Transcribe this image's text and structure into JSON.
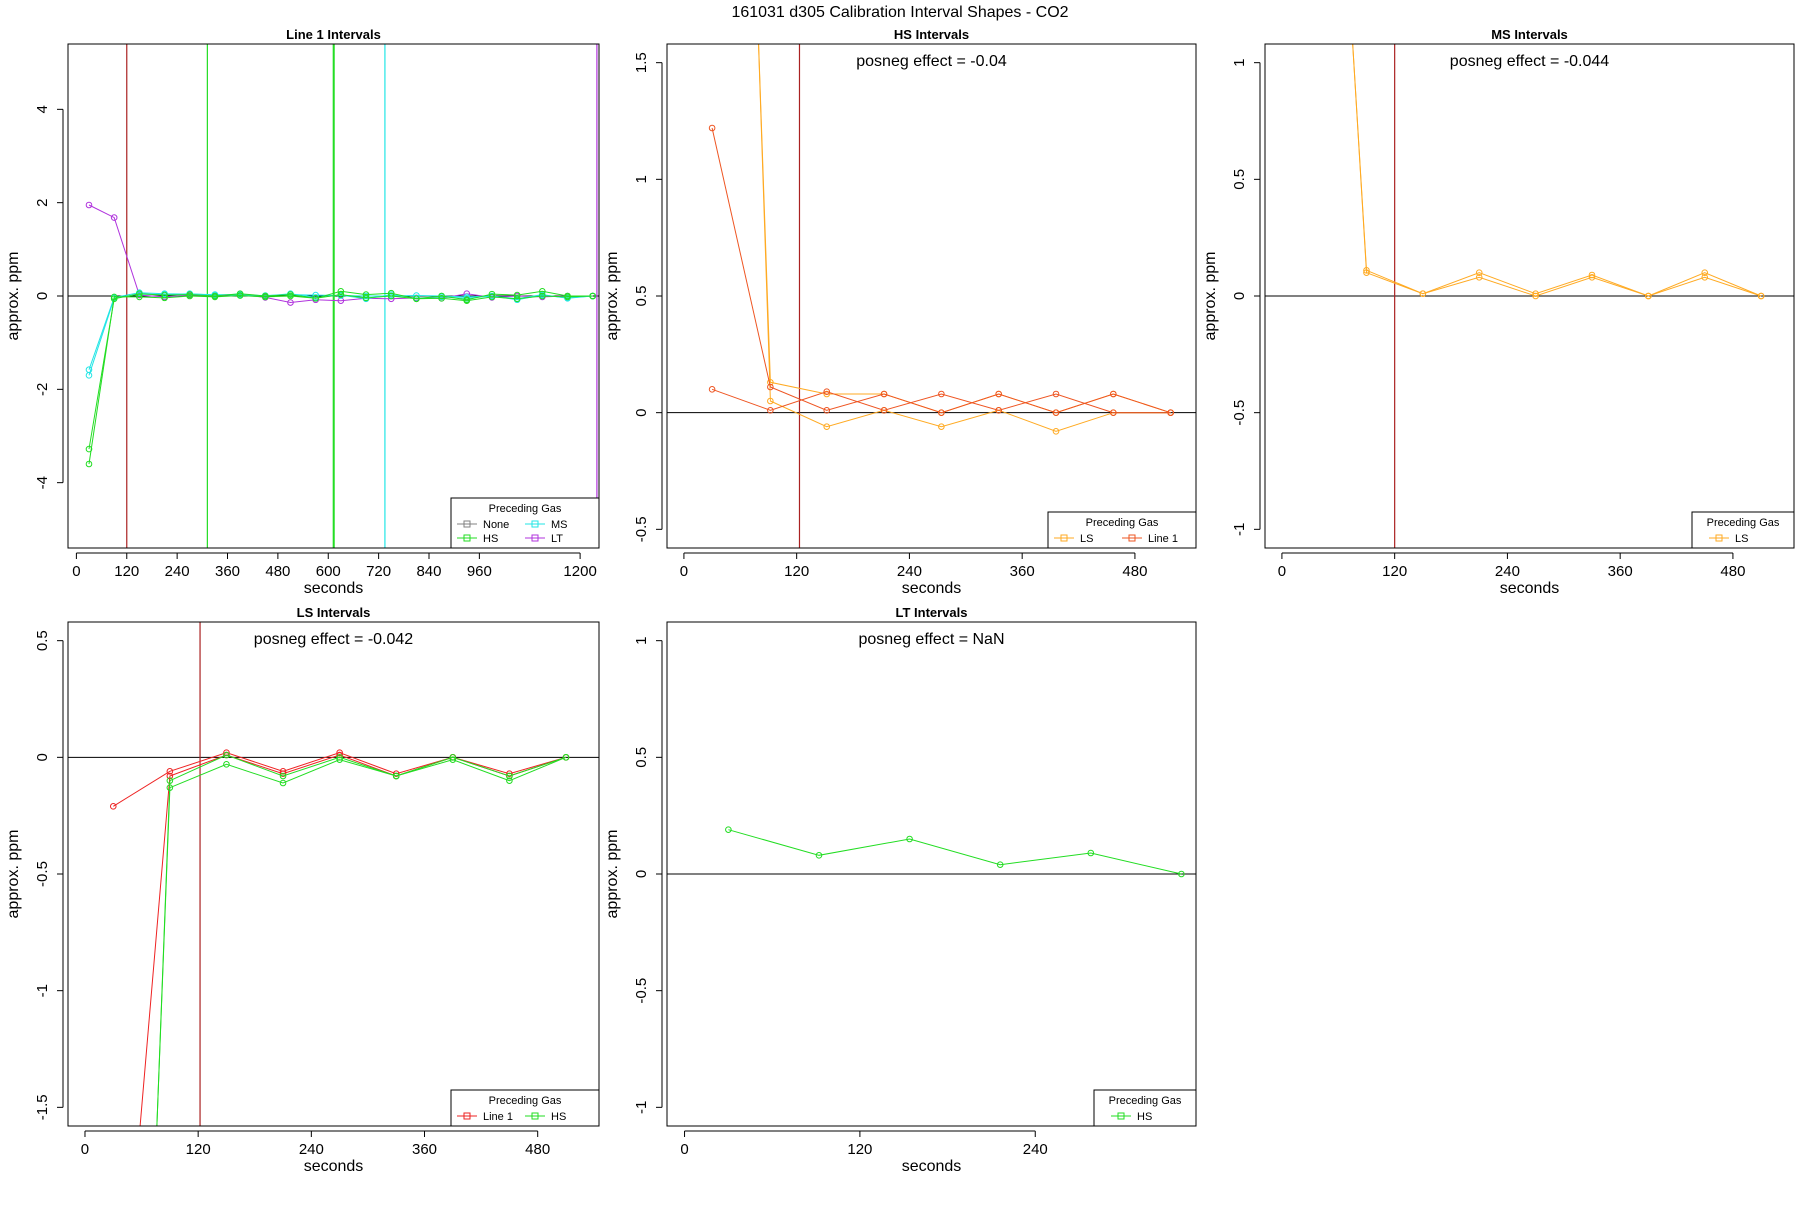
{
  "figure_title": "161031  d305   Calibration Interval Shapes - CO2",
  "colors": {
    "None": "#808080",
    "HS": "#22dd22",
    "MS": "#22e5e5",
    "LT": "#b033dd",
    "LS": "#ffaa22",
    "Line 1": "#ee2222",
    "Line 1 (in HS panel)": "#ee5522",
    "axis": "#000000",
    "marker_line": "#aa2222"
  },
  "chart_data": [
    {
      "type": "line",
      "title": "Line 1 Intervals",
      "xlabel": "seconds",
      "ylabel": "approx. ppm",
      "xlim": [
        -20,
        1245
      ],
      "ylim": [
        -5.4,
        5.4
      ],
      "xticks": [
        0,
        120,
        240,
        360,
        480,
        600,
        720,
        840,
        960,
        1200
      ],
      "yticks": [
        -4,
        -2,
        0,
        2,
        4
      ],
      "hline": 0,
      "vlines": [
        {
          "x": 120,
          "color": "#aa2222"
        },
        {
          "x": 312,
          "color": "#22dd22"
        },
        {
          "x": 612,
          "color": "#22dd22"
        },
        {
          "x": 614,
          "color": "#22dd22"
        },
        {
          "x": 735,
          "color": "#22e5e5"
        },
        {
          "x": 1240,
          "color": "#b033dd"
        }
      ],
      "legend": {
        "title": "Preceding Gas",
        "position": "bottom-right",
        "entries": [
          {
            "label": "None",
            "color": "#808080"
          },
          {
            "label": "MS",
            "color": "#22e5e5"
          },
          {
            "label": "HS",
            "color": "#22dd22"
          },
          {
            "label": "LT",
            "color": "#b033dd"
          }
        ]
      },
      "series": [
        {
          "name": "LT",
          "color": "#b033dd",
          "x": [
            30,
            90,
            150,
            210,
            270,
            330,
            390,
            450,
            510,
            570,
            630,
            690,
            750,
            810,
            870,
            930,
            990,
            1050,
            1110,
            1170,
            1230
          ],
          "y": [
            1.95,
            1.68,
            0.02,
            -0.02,
            0.02,
            0.0,
            0.03,
            -0.03,
            -0.14,
            -0.08,
            -0.1,
            -0.05,
            -0.06,
            -0.04,
            -0.05,
            0.05,
            -0.03,
            0.0,
            -0.02,
            0.0,
            0.0
          ]
        },
        {
          "name": "MS",
          "color": "#22e5e5",
          "x": [
            30,
            90,
            150,
            210,
            270,
            330,
            390,
            450,
            510,
            570,
            630,
            690,
            750,
            810,
            870,
            930,
            990,
            1050,
            1110,
            1170,
            1230
          ],
          "y": [
            -1.58,
            -0.03,
            0.07,
            0.05,
            0.04,
            0.03,
            0.02,
            0.01,
            0.03,
            0.02,
            0.01,
            0.0,
            0.0,
            0.01,
            0.0,
            -0.02,
            0.0,
            -0.08,
            0.02,
            -0.04,
            0.0
          ]
        },
        {
          "name": "MS",
          "color": "#22e5e5",
          "x": [
            30,
            90,
            150,
            210,
            270,
            330,
            390,
            450,
            510,
            570,
            630,
            690,
            750,
            810,
            870,
            930,
            990,
            1050,
            1110,
            1170,
            1230
          ],
          "y": [
            -1.7,
            -0.05,
            0.04,
            0.03,
            0.05,
            0.02,
            0.04,
            0.0,
            0.05,
            -0.03,
            0.02,
            -0.06,
            0.03,
            -0.05,
            -0.02,
            -0.05,
            0.0,
            -0.06,
            0.03,
            -0.05,
            0.0
          ]
        },
        {
          "name": "HS",
          "color": "#22dd22",
          "x": [
            30,
            90,
            150,
            210,
            270,
            330,
            390,
            450,
            510,
            570,
            630,
            690,
            750,
            810,
            870,
            930,
            990,
            1050,
            1110,
            1170,
            1230
          ],
          "y": [
            -3.28,
            -0.06,
            0.05,
            0.02,
            0.03,
            0.0,
            0.05,
            0.0,
            0.03,
            -0.05,
            0.1,
            0.03,
            0.06,
            -0.06,
            0.0,
            -0.08,
            0.04,
            0.02,
            0.1,
            0.0,
            0.0
          ]
        },
        {
          "name": "HS",
          "color": "#22dd22",
          "x": [
            30,
            90,
            150,
            210,
            270,
            330,
            390,
            450,
            510,
            570,
            630,
            690,
            750,
            810,
            870,
            930,
            990,
            1050,
            1110,
            1170,
            1230
          ],
          "y": [
            -3.6,
            -0.02,
            -0.02,
            -0.04,
            0.0,
            -0.02,
            0.01,
            -0.02,
            0.0,
            -0.05,
            0.03,
            -0.04,
            0.0,
            -0.06,
            -0.05,
            -0.1,
            -0.02,
            -0.06,
            0.0,
            -0.02,
            0.0
          ]
        }
      ]
    },
    {
      "type": "line",
      "title": "HS Intervals",
      "annotation": "posneg effect = -0.04",
      "xlabel": "seconds",
      "ylabel": "approx. ppm",
      "xlim": [
        -18,
        545
      ],
      "ylim": [
        -0.58,
        1.58
      ],
      "xticks": [
        0,
        120,
        240,
        360,
        480
      ],
      "yticks": [
        -0.5,
        0.0,
        0.5,
        1.0,
        1.5
      ],
      "hline": 0,
      "vlines": [
        {
          "x": 123,
          "color": "#aa2222"
        }
      ],
      "legend": {
        "title": "Preceding Gas",
        "position": "bottom-right",
        "entries": [
          {
            "label": "LS",
            "color": "#ffaa22"
          },
          {
            "label": "Line 1",
            "color": "#ee5522"
          }
        ]
      },
      "series": [
        {
          "name": "LS",
          "color": "#ffaa22",
          "x": [
            78,
            92,
            152,
            213,
            274,
            335,
            396,
            457,
            518
          ],
          "y": [
            1.75,
            0.13,
            0.08,
            0.08,
            0.0,
            0.08,
            0.0,
            0.08,
            0.0
          ]
        },
        {
          "name": "LS",
          "color": "#ffaa22",
          "x": [
            78,
            92,
            152,
            213,
            274,
            335,
            396,
            457,
            518
          ],
          "y": [
            1.75,
            0.05,
            -0.06,
            0.01,
            -0.06,
            0.01,
            -0.08,
            0.0,
            0.0
          ]
        },
        {
          "name": "Line 1",
          "color": "#ee5522",
          "x": [
            30,
            92,
            152,
            213,
            274,
            335,
            396,
            457,
            518
          ],
          "y": [
            1.22,
            0.11,
            0.01,
            0.08,
            0.0,
            0.08,
            0.0,
            0.08,
            0.0
          ]
        },
        {
          "name": "Line 1",
          "color": "#ee5522",
          "x": [
            30,
            92,
            152,
            213,
            274,
            335,
            396,
            457,
            518
          ],
          "y": [
            0.1,
            0.01,
            0.09,
            0.01,
            0.08,
            0.01,
            0.08,
            0.0,
            0.0
          ]
        }
      ]
    },
    {
      "type": "line",
      "title": "MS Intervals",
      "annotation": "posneg effect = -0.044",
      "xlabel": "seconds",
      "ylabel": "approx. ppm",
      "xlim": [
        -18,
        545
      ],
      "ylim": [
        -1.08,
        1.08
      ],
      "xticks": [
        0,
        120,
        240,
        360,
        480
      ],
      "yticks": [
        -1.0,
        -0.5,
        0.0,
        0.5,
        1.0
      ],
      "hline": 0,
      "vlines": [
        {
          "x": 120,
          "color": "#aa2222"
        }
      ],
      "legend": {
        "title": "Preceding Gas",
        "position": "bottom-right",
        "entries": [
          {
            "label": "LS",
            "color": "#ffaa22"
          }
        ]
      },
      "series": [
        {
          "name": "LS",
          "color": "#ffaa22",
          "x": [
            75,
            90,
            150,
            210,
            270,
            330,
            390,
            450,
            510
          ],
          "y": [
            1.1,
            0.1,
            0.01,
            0.08,
            0.0,
            0.08,
            0.0,
            0.08,
            0.0
          ]
        },
        {
          "name": "LS",
          "color": "#ffaa22",
          "x": [
            75,
            90,
            150,
            210,
            270,
            330,
            390,
            450,
            510
          ],
          "y": [
            1.1,
            0.11,
            0.01,
            0.1,
            0.01,
            0.09,
            0.0,
            0.1,
            0.0
          ]
        }
      ]
    },
    {
      "type": "line",
      "title": "LS Intervals",
      "annotation": "posneg effect = -0.042",
      "xlabel": "seconds",
      "ylabel": "approx. ppm",
      "xlim": [
        -18,
        545
      ],
      "ylim": [
        -1.58,
        0.58
      ],
      "xticks": [
        0,
        120,
        240,
        360,
        480
      ],
      "yticks": [
        -1.5,
        -1.0,
        -0.5,
        0.0,
        0.5
      ],
      "hline": 0,
      "vlines": [
        {
          "x": 122,
          "color": "#aa2222"
        }
      ],
      "legend": {
        "title": "Preceding Gas",
        "position": "bottom-right",
        "entries": [
          {
            "label": "Line 1",
            "color": "#ee2222"
          },
          {
            "label": "HS",
            "color": "#22dd22"
          }
        ]
      },
      "series": [
        {
          "name": "Line 1",
          "color": "#ee2222",
          "x": [
            30,
            90,
            150,
            210,
            270,
            330,
            390,
            450,
            510
          ],
          "y": [
            -0.21,
            -0.06,
            0.02,
            -0.06,
            0.02,
            -0.07,
            0.0,
            -0.07,
            0.0
          ]
        },
        {
          "name": "Line 1",
          "color": "#ee2222",
          "x": [
            58,
            90,
            150,
            210,
            270,
            330,
            390,
            450,
            510
          ],
          "y": [
            -1.6,
            -0.08,
            0.01,
            -0.07,
            0.01,
            -0.08,
            0.0,
            -0.08,
            0.0
          ]
        },
        {
          "name": "HS",
          "color": "#22dd22",
          "x": [
            76,
            90,
            150,
            210,
            270,
            330,
            390,
            450,
            510
          ],
          "y": [
            -1.6,
            -0.13,
            -0.03,
            -0.11,
            -0.01,
            -0.08,
            -0.01,
            -0.1,
            0.0
          ]
        },
        {
          "name": "HS",
          "color": "#22dd22",
          "x": [
            76,
            90,
            150,
            210,
            270,
            330,
            390,
            450,
            510
          ],
          "y": [
            -1.6,
            -0.1,
            0.01,
            -0.08,
            0.0,
            -0.08,
            0.0,
            -0.08,
            0.0
          ]
        }
      ]
    },
    {
      "type": "line",
      "title": "LT Intervals",
      "annotation": "posneg effect = NaN",
      "xlabel": "seconds",
      "ylabel": "approx. ppm",
      "xlim": [
        -12,
        350
      ],
      "ylim": [
        -1.08,
        1.08
      ],
      "xticks": [
        0,
        120,
        240
      ],
      "yticks": [
        -1.0,
        -0.5,
        0.0,
        0.5,
        1.0
      ],
      "hline": 0,
      "vlines": [],
      "legend": {
        "title": "Preceding Gas",
        "position": "bottom-right",
        "entries": [
          {
            "label": "HS",
            "color": "#22dd22"
          }
        ]
      },
      "series": [
        {
          "name": "HS",
          "color": "#22dd22",
          "x": [
            30,
            92,
            154,
            216,
            278,
            340
          ],
          "y": [
            0.19,
            0.08,
            0.15,
            0.04,
            0.09,
            0.0
          ]
        }
      ]
    }
  ]
}
